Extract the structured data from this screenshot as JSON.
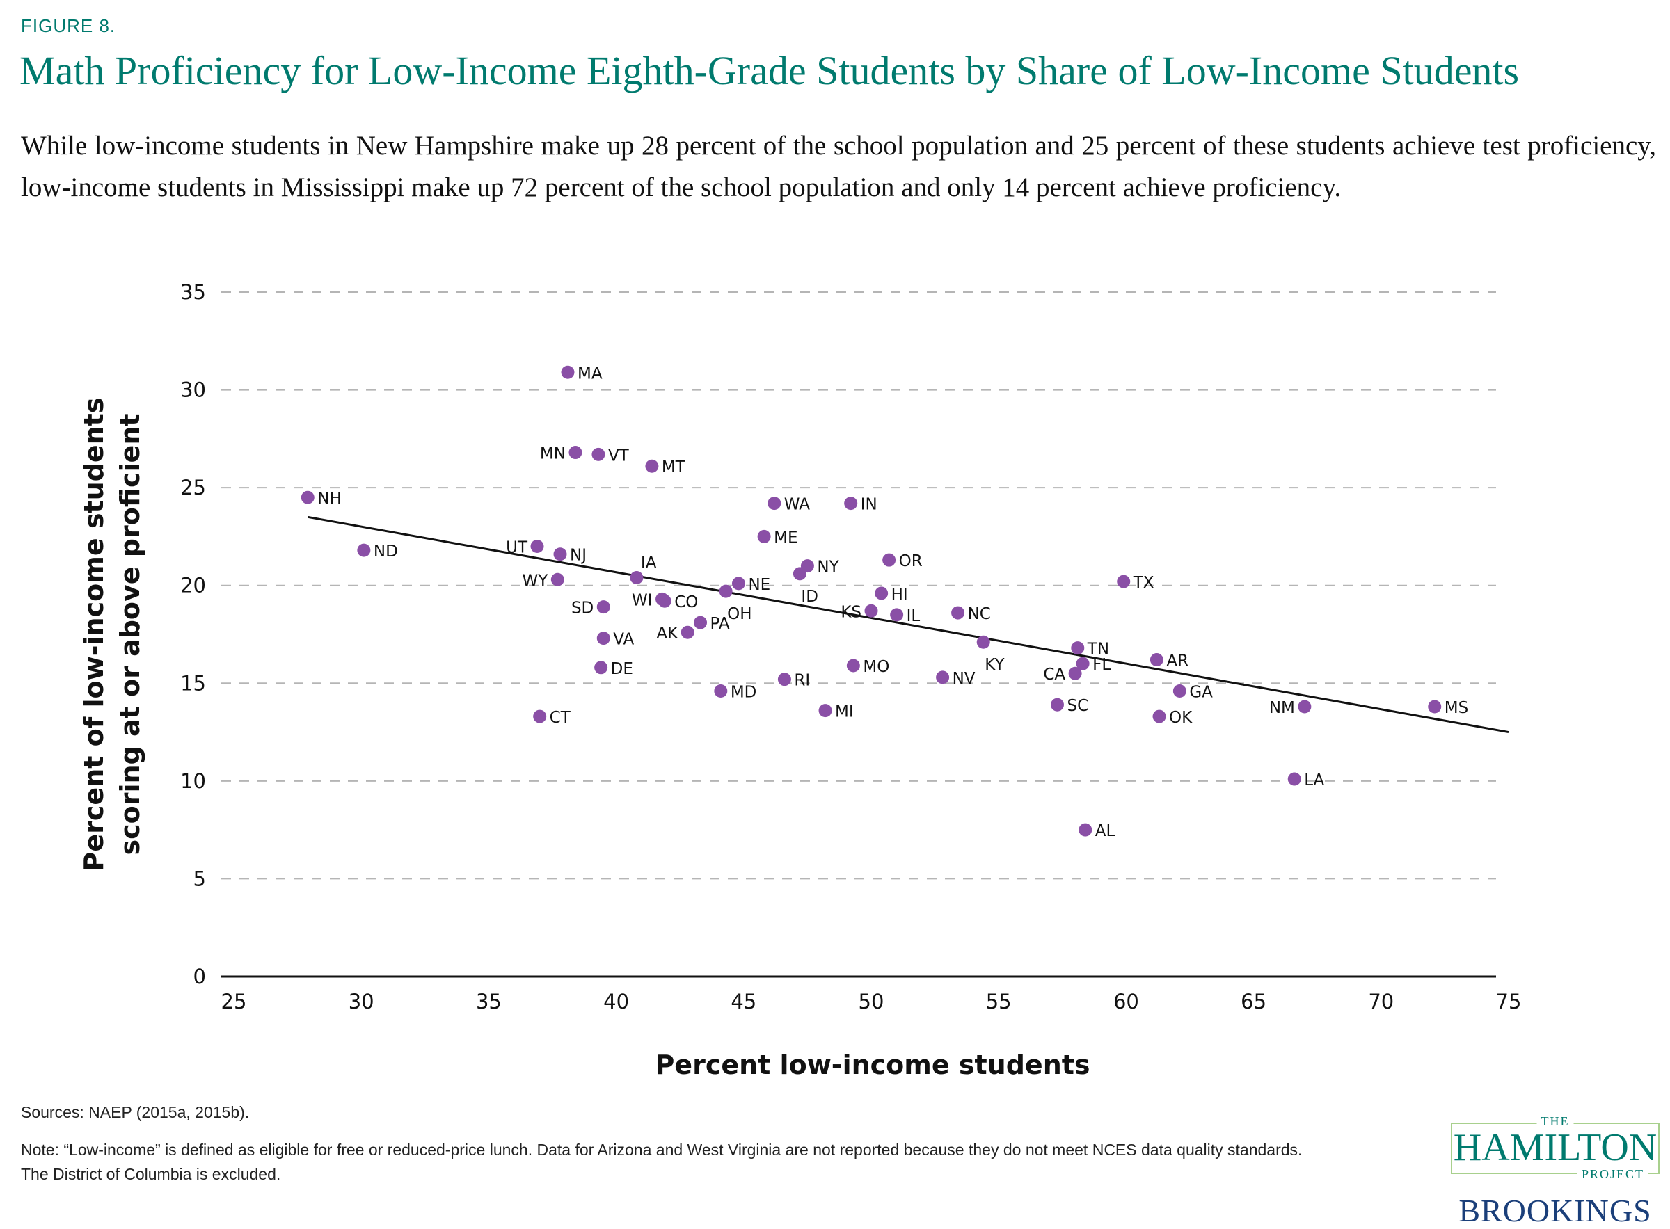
{
  "figure_label": "FIGURE 8.",
  "title": "Math Proficiency for Low-Income Eighth-Grade Students by Share of Low-Income Students",
  "subtitle": "While low-income students in New Hampshire make up 28 percent of the school population and 25 percent of these students achieve test proficiency, low-income students in Mississippi make up 72 percent of the school population and only 14 percent achieve proficiency.",
  "sources": "Sources: NAEP (2015a, 2015b).",
  "note": "Note: “Low-income” is defined as eligible for free or reduced-price lunch. Data for Arizona and West Virginia are not reported because they do not meet NCES data quality standards. The District of Columbia is excluded.",
  "logo": {
    "the": "THE",
    "hamilton": "HAMILTON",
    "project": "PROJECT",
    "brookings": "BROOKINGS"
  },
  "colors": {
    "accent": "#007a6e",
    "point": "#8a4fa6",
    "brookings": "#1b3f7a",
    "logo_border": "#a8d08d"
  },
  "chart_data": {
    "type": "scatter",
    "title": "Math Proficiency for Low-Income Eighth-Grade Students by Share of Low-Income Students",
    "xlabel": "Percent low-income students",
    "ylabel": "Percent of low-income students scoring at or above proficient",
    "ylabel_lines": [
      "Percent of low-income students",
      "scoring at or above proficient"
    ],
    "xlim": [
      25,
      75
    ],
    "ylim": [
      0,
      35
    ],
    "xticks": [
      25,
      30,
      35,
      40,
      45,
      50,
      55,
      60,
      65,
      70,
      75
    ],
    "yticks": [
      0,
      5,
      10,
      15,
      20,
      25,
      30,
      35
    ],
    "grid": "horizontal-dashed",
    "trendline": {
      "x": [
        27.9,
        75
      ],
      "y": [
        23.5,
        12.5
      ]
    },
    "points": [
      {
        "label": "NH",
        "x": 27.9,
        "y": 24.5,
        "pos": "right"
      },
      {
        "label": "ND",
        "x": 30.1,
        "y": 21.8,
        "pos": "right"
      },
      {
        "label": "MA",
        "x": 38.1,
        "y": 30.9,
        "pos": "right"
      },
      {
        "label": "MN",
        "x": 38.4,
        "y": 26.8,
        "pos": "left"
      },
      {
        "label": "VT",
        "x": 39.3,
        "y": 26.7,
        "pos": "right"
      },
      {
        "label": "MT",
        "x": 41.4,
        "y": 26.1,
        "pos": "right"
      },
      {
        "label": "UT",
        "x": 36.9,
        "y": 22.0,
        "pos": "left"
      },
      {
        "label": "NJ",
        "x": 37.8,
        "y": 21.6,
        "pos": "right"
      },
      {
        "label": "WY",
        "x": 37.7,
        "y": 20.3,
        "pos": "left"
      },
      {
        "label": "IA",
        "x": 40.8,
        "y": 20.4,
        "pos": "above-right"
      },
      {
        "label": "WI",
        "x": 41.8,
        "y": 19.3,
        "pos": "left"
      },
      {
        "label": "CO",
        "x": 41.9,
        "y": 19.2,
        "pos": "right"
      },
      {
        "label": "SD",
        "x": 39.5,
        "y": 18.9,
        "pos": "left"
      },
      {
        "label": "VA",
        "x": 39.5,
        "y": 17.3,
        "pos": "right"
      },
      {
        "label": "DE",
        "x": 39.4,
        "y": 15.8,
        "pos": "right"
      },
      {
        "label": "CT",
        "x": 37.0,
        "y": 13.3,
        "pos": "right"
      },
      {
        "label": "AK",
        "x": 42.8,
        "y": 17.6,
        "pos": "left"
      },
      {
        "label": "PA",
        "x": 43.3,
        "y": 18.1,
        "pos": "right"
      },
      {
        "label": "OH",
        "x": 44.3,
        "y": 19.7,
        "pos": "below"
      },
      {
        "label": "NE",
        "x": 44.8,
        "y": 20.1,
        "pos": "right"
      },
      {
        "label": "MD",
        "x": 44.1,
        "y": 14.6,
        "pos": "right"
      },
      {
        "label": "RI",
        "x": 46.6,
        "y": 15.2,
        "pos": "right"
      },
      {
        "label": "ME",
        "x": 45.8,
        "y": 22.5,
        "pos": "right"
      },
      {
        "label": "WA",
        "x": 46.2,
        "y": 24.2,
        "pos": "right"
      },
      {
        "label": "IN",
        "x": 49.2,
        "y": 24.2,
        "pos": "right"
      },
      {
        "label": "NY",
        "x": 47.5,
        "y": 21.0,
        "pos": "right"
      },
      {
        "label": "ID",
        "x": 47.2,
        "y": 20.6,
        "pos": "below"
      },
      {
        "label": "OR",
        "x": 50.7,
        "y": 21.3,
        "pos": "right"
      },
      {
        "label": "HI",
        "x": 50.4,
        "y": 19.6,
        "pos": "right"
      },
      {
        "label": "KS",
        "x": 50.0,
        "y": 18.7,
        "pos": "left"
      },
      {
        "label": "IL",
        "x": 51.0,
        "y": 18.5,
        "pos": "right"
      },
      {
        "label": "MI",
        "x": 48.2,
        "y": 13.6,
        "pos": "right"
      },
      {
        "label": "MO",
        "x": 49.3,
        "y": 15.9,
        "pos": "right"
      },
      {
        "label": "NV",
        "x": 52.8,
        "y": 15.3,
        "pos": "right"
      },
      {
        "label": "NC",
        "x": 53.4,
        "y": 18.6,
        "pos": "right"
      },
      {
        "label": "KY",
        "x": 54.4,
        "y": 17.1,
        "pos": "below"
      },
      {
        "label": "TX",
        "x": 59.9,
        "y": 20.2,
        "pos": "right"
      },
      {
        "label": "TN",
        "x": 58.1,
        "y": 16.8,
        "pos": "right"
      },
      {
        "label": "FL",
        "x": 58.3,
        "y": 16.0,
        "pos": "right"
      },
      {
        "label": "CA",
        "x": 58.0,
        "y": 15.5,
        "pos": "left"
      },
      {
        "label": "SC",
        "x": 57.3,
        "y": 13.9,
        "pos": "right"
      },
      {
        "label": "AL",
        "x": 58.4,
        "y": 7.5,
        "pos": "right"
      },
      {
        "label": "AR",
        "x": 61.2,
        "y": 16.2,
        "pos": "right"
      },
      {
        "label": "GA",
        "x": 62.1,
        "y": 14.6,
        "pos": "right"
      },
      {
        "label": "OK",
        "x": 61.3,
        "y": 13.3,
        "pos": "right"
      },
      {
        "label": "NM",
        "x": 67.0,
        "y": 13.8,
        "pos": "left"
      },
      {
        "label": "LA",
        "x": 66.6,
        "y": 10.1,
        "pos": "right"
      },
      {
        "label": "MS",
        "x": 72.1,
        "y": 13.8,
        "pos": "right"
      }
    ]
  }
}
